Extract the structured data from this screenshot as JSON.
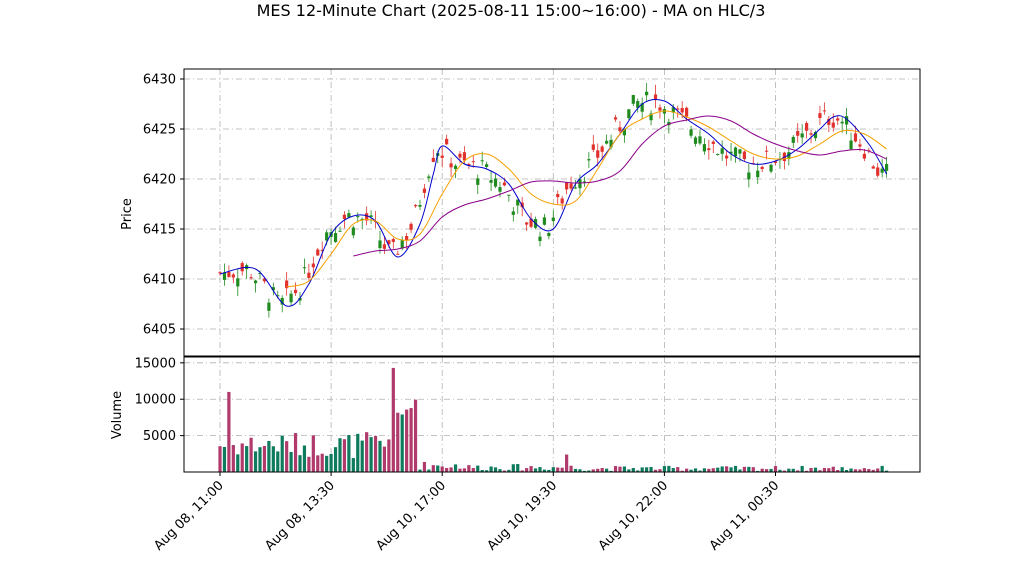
{
  "chart_data": {
    "type": "candlestick",
    "title": "MES 12-Minute Chart (2025-08-11 15:00~16:00) - MA on HLC/3",
    "price_panel": {
      "ylabel": "Price",
      "ylim": [
        6402.3,
        6431.0
      ],
      "yticks": [
        "6405",
        "6410",
        "6415",
        "6420",
        "6425",
        "6430"
      ],
      "grid": true
    },
    "volume_panel": {
      "ylabel": "Volume",
      "ylim": [
        0,
        15800
      ],
      "yticks": [
        "5000",
        "10000",
        "15000"
      ],
      "grid": true
    },
    "xticks": [
      "Aug 08, 11:00",
      "Aug 08, 13:30",
      "Aug 10, 17:00",
      "Aug 10, 19:30",
      "Aug 10, 22:00",
      "Aug 11, 00:30"
    ],
    "xtick_bar_index": [
      0,
      25,
      50,
      75,
      100,
      125
    ],
    "bar_count": 151,
    "colors": {
      "up": "#1f8b1f",
      "down": "#e0312d",
      "vol_up": "#0e7a5e",
      "vol_down": "#b03a6b",
      "grid": "#b0b0b0"
    },
    "ma_series": [
      {
        "color": "#0000cc",
        "anchors": [
          [
            0,
            6410.5
          ],
          [
            8,
            6411.0
          ],
          [
            15,
            6407.3
          ],
          [
            20,
            6409.5
          ],
          [
            25,
            6414.5
          ],
          [
            30,
            6416.3
          ],
          [
            35,
            6415.8
          ],
          [
            40,
            6412.2
          ],
          [
            45,
            6415.5
          ],
          [
            48,
            6420.5
          ],
          [
            50,
            6423.3
          ],
          [
            55,
            6421.5
          ],
          [
            60,
            6421.0
          ],
          [
            65,
            6419.5
          ],
          [
            70,
            6416.0
          ],
          [
            75,
            6415.0
          ],
          [
            80,
            6419.5
          ],
          [
            85,
            6421.5
          ],
          [
            90,
            6424.5
          ],
          [
            95,
            6427.5
          ],
          [
            100,
            6427.8
          ],
          [
            105,
            6426.0
          ],
          [
            110,
            6424.5
          ],
          [
            115,
            6422.5
          ],
          [
            120,
            6421.5
          ],
          [
            125,
            6421.8
          ],
          [
            130,
            6423.0
          ],
          [
            135,
            6425.0
          ],
          [
            138,
            6426.2
          ],
          [
            141,
            6426.0
          ],
          [
            146,
            6423.5
          ],
          [
            150,
            6420.5
          ]
        ]
      },
      {
        "color": "#f5a000",
        "anchors": [
          [
            15,
            6409.2
          ],
          [
            20,
            6409.8
          ],
          [
            25,
            6412.5
          ],
          [
            30,
            6415.5
          ],
          [
            35,
            6415.8
          ],
          [
            40,
            6414.0
          ],
          [
            45,
            6414.5
          ],
          [
            50,
            6418.5
          ],
          [
            55,
            6421.8
          ],
          [
            60,
            6422.5
          ],
          [
            65,
            6421.0
          ],
          [
            70,
            6418.5
          ],
          [
            75,
            6417.5
          ],
          [
            80,
            6417.8
          ],
          [
            85,
            6421.0
          ],
          [
            90,
            6424.5
          ],
          [
            95,
            6426.0
          ],
          [
            100,
            6426.8
          ],
          [
            105,
            6426.2
          ],
          [
            110,
            6425.2
          ],
          [
            115,
            6423.8
          ],
          [
            120,
            6422.5
          ],
          [
            125,
            6422.0
          ],
          [
            130,
            6422.3
          ],
          [
            135,
            6423.5
          ],
          [
            140,
            6424.8
          ],
          [
            145,
            6424.5
          ],
          [
            150,
            6423.0
          ]
        ]
      },
      {
        "color": "#8b008b",
        "anchors": [
          [
            30,
            6412.3
          ],
          [
            35,
            6412.8
          ],
          [
            40,
            6413.0
          ],
          [
            45,
            6413.8
          ],
          [
            50,
            6416.2
          ],
          [
            55,
            6417.4
          ],
          [
            60,
            6418.0
          ],
          [
            65,
            6418.8
          ],
          [
            70,
            6419.7
          ],
          [
            75,
            6419.8
          ],
          [
            80,
            6419.6
          ],
          [
            85,
            6419.8
          ],
          [
            90,
            6420.8
          ],
          [
            95,
            6423.5
          ],
          [
            100,
            6425.3
          ],
          [
            105,
            6425.9
          ],
          [
            110,
            6426.3
          ],
          [
            115,
            6425.8
          ],
          [
            120,
            6424.5
          ],
          [
            125,
            6423.5
          ],
          [
            130,
            6422.8
          ],
          [
            135,
            6422.4
          ],
          [
            140,
            6422.8
          ],
          [
            145,
            6422.9
          ],
          [
            150,
            6422.0
          ]
        ]
      }
    ]
  }
}
